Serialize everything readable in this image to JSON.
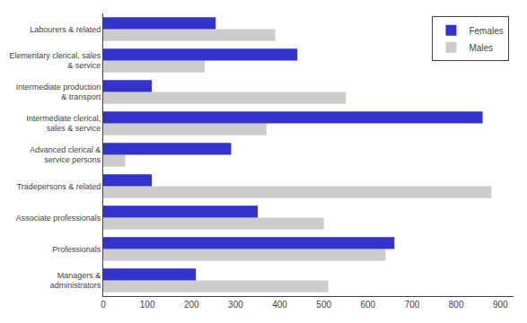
{
  "chart_data": {
    "type": "bar",
    "orientation": "horizontal",
    "categories": [
      "Managers &\nadministrators",
      "Professionals",
      "Associate professionals",
      "Tradepersons & related",
      "Advanced clerical &\nservice persons",
      "Intermediate clerical,\nsales & service",
      "Intermediate production\n& transport",
      "Elementary clerical, sales\n& service",
      "Labourers & related"
    ],
    "series": [
      {
        "name": "Females",
        "color": "#3333cc",
        "values": [
          210,
          660,
          350,
          110,
          290,
          860,
          110,
          440,
          255
        ]
      },
      {
        "name": "Males",
        "color": "#cccccc",
        "values": [
          510,
          640,
          500,
          880,
          50,
          370,
          550,
          230,
          390
        ]
      }
    ],
    "xlim": [
      0,
      930
    ],
    "xticks": [
      0,
      100,
      200,
      300,
      400,
      500,
      600,
      700,
      800,
      900
    ],
    "grid": false,
    "legend": "upper right"
  }
}
